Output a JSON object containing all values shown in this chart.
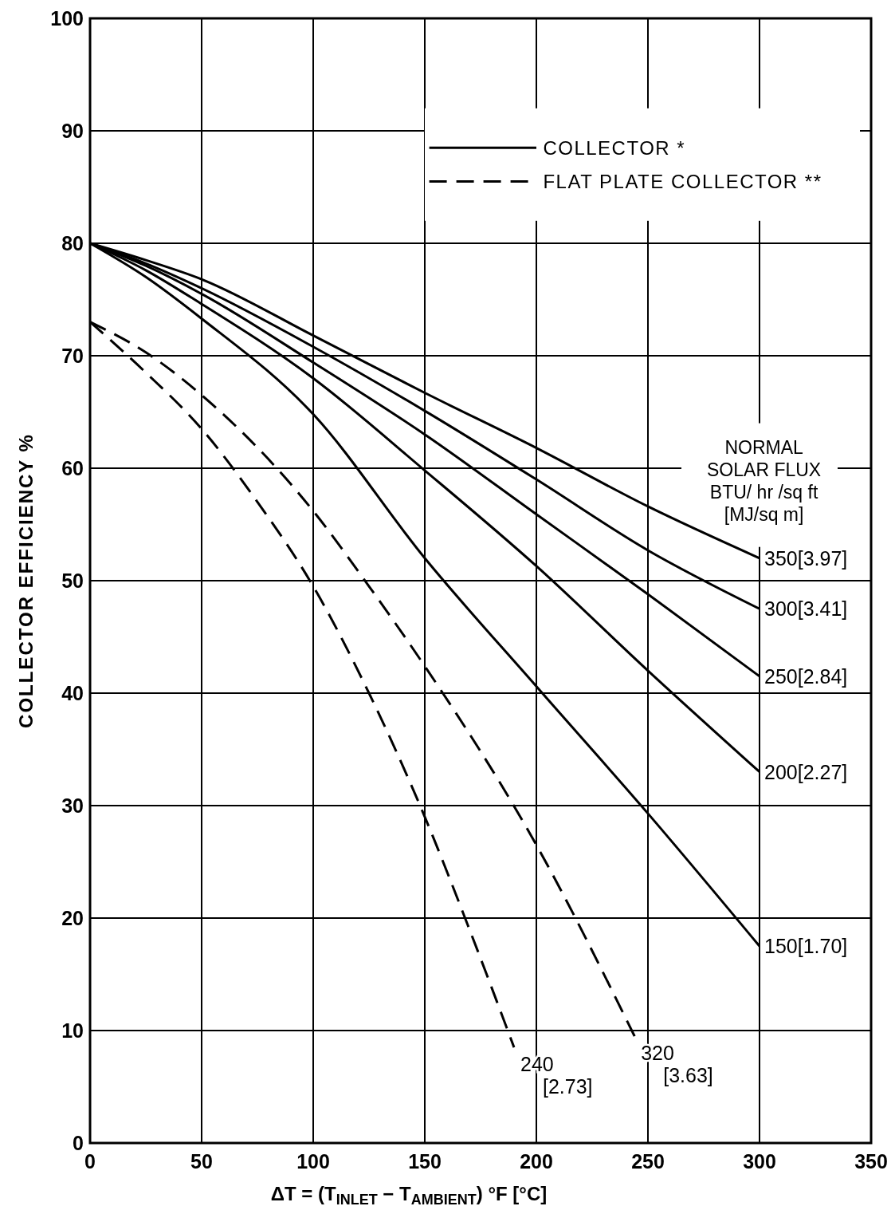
{
  "chart_data": {
    "type": "line",
    "xlabel": "ΔT = (T$_{INLET}$ − T$_{AMBIENT}$)   °F   [°C]",
    "ylabel": "COLLECTOR EFFICIENCY %",
    "xlim": [
      0,
      350
    ],
    "xticks": [
      0,
      50,
      100,
      150,
      200,
      250,
      300,
      350
    ],
    "ylim": [
      0,
      100
    ],
    "yticks": [
      0,
      10,
      20,
      30,
      40,
      50,
      60,
      70,
      80,
      90,
      100
    ],
    "grid": true,
    "marker": "none",
    "series": [
      {
        "name": "350[3.97]",
        "color": "#000000",
        "line_style": "solid",
        "x": [
          0,
          25,
          50,
          100,
          150,
          200,
          250,
          300
        ],
        "values": [
          80,
          78.5,
          76.8,
          71.8,
          66.7,
          61.8,
          56.6,
          52
        ]
      },
      {
        "name": "300[3.41]",
        "color": "#000000",
        "line_style": "solid",
        "x": [
          0,
          25,
          50,
          100,
          150,
          200,
          250,
          300
        ],
        "values": [
          80,
          78.2,
          76,
          70.8,
          65.1,
          59,
          52.7,
          47.5
        ]
      },
      {
        "name": "250[2.84]",
        "color": "#000000",
        "line_style": "solid",
        "x": [
          0,
          25,
          50,
          100,
          150,
          200,
          250,
          300
        ],
        "values": [
          80,
          78,
          75.5,
          69.4,
          63,
          55.9,
          48.8,
          41.5
        ]
      },
      {
        "name": "200[2.27]",
        "color": "#000000",
        "line_style": "solid",
        "x": [
          0,
          25,
          50,
          100,
          150,
          200,
          250,
          300
        ],
        "values": [
          80,
          77.6,
          74.6,
          68,
          59.8,
          51.3,
          42,
          33
        ]
      },
      {
        "name": "150[1.70]",
        "color": "#000000",
        "line_style": "solid",
        "x": [
          0,
          25,
          50,
          100,
          150,
          200,
          250,
          300
        ],
        "values": [
          80,
          77,
          73.3,
          64.8,
          52,
          40.6,
          29.3,
          17.5
        ]
      },
      {
        "name": "320\n[3.63]",
        "color": "#000000",
        "line_style": "dashed",
        "x": [
          0,
          25,
          50,
          100,
          125,
          150,
          200,
          244
        ],
        "values": [
          73,
          70.3,
          66.5,
          56.2,
          49.5,
          42.4,
          26.5,
          9.5
        ]
      },
      {
        "name": "240\n[2.73]",
        "color": "#000000",
        "line_style": "dashed",
        "x": [
          0,
          25,
          50,
          75,
          100,
          125,
          150,
          170,
          190
        ],
        "values": [
          73,
          68.5,
          63.5,
          57,
          49.5,
          40,
          29,
          19,
          8.5
        ]
      }
    ],
    "annotations": [
      "COLLECTOR *",
      "FLAT PLATE COLLECTOR **",
      "NORMAL\nSOLAR FLUX\nBTU/ hr /sq ft\n[MJ/sq m]"
    ]
  }
}
